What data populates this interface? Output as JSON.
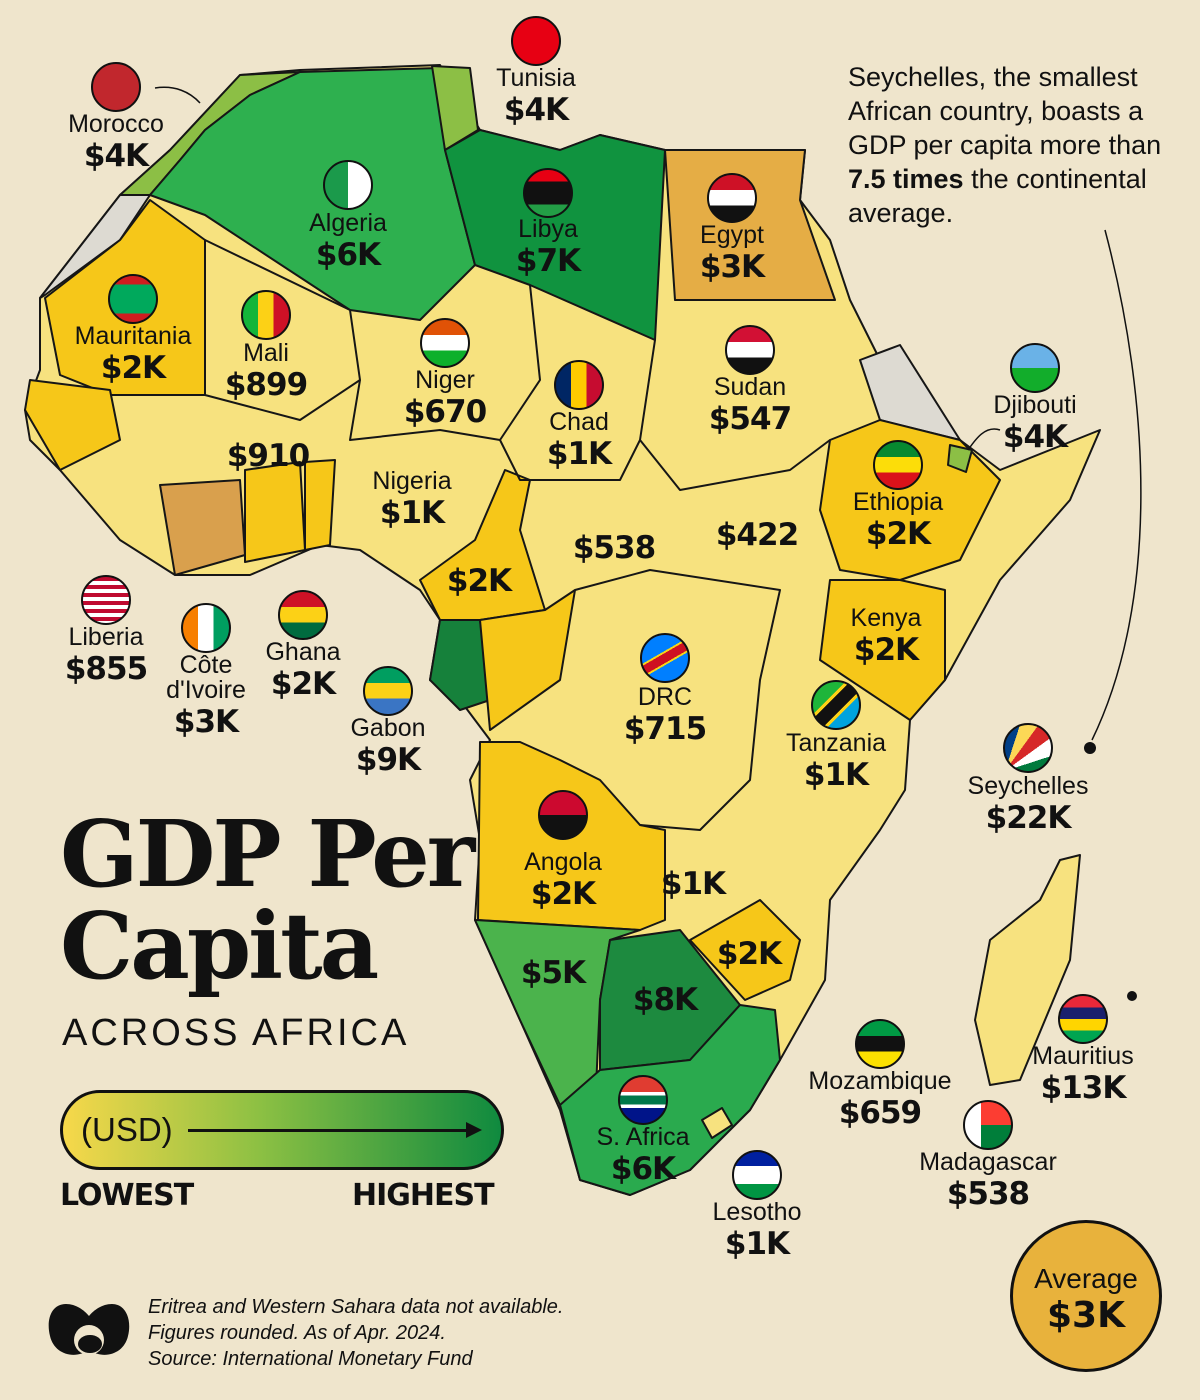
{
  "title": "GDP Per Capita",
  "subtitle": "ACROSS AFRICA",
  "legend": {
    "unit": "(USD)",
    "low": "LOWEST",
    "high": "HIGHEST",
    "colors": [
      "#f7d84a",
      "#8cc043",
      "#0f8a3f"
    ]
  },
  "note": {
    "pre": "Seychelles, the smallest African country, boasts a GDP per capita more than ",
    "emphasis": "7.5 times",
    "post": " the continental average."
  },
  "average": {
    "label": "Average",
    "value": "$3K"
  },
  "footer": [
    "Eritrea and Western Sahara data not available.",
    "Figures rounded. As of Apr. 2024.",
    "Source: International Monetary Fund"
  ],
  "countries": [
    {
      "name": "Morocco",
      "value": "$4K"
    },
    {
      "name": "Tunisia",
      "value": "$4K"
    },
    {
      "name": "Algeria",
      "value": "$6K"
    },
    {
      "name": "Libya",
      "value": "$7K"
    },
    {
      "name": "Egypt",
      "value": "$3K"
    },
    {
      "name": "Mauritania",
      "value": "$2K"
    },
    {
      "name": "Mali",
      "value": "$899"
    },
    {
      "name": "Niger",
      "value": "$670"
    },
    {
      "name": "Chad",
      "value": "$1K"
    },
    {
      "name": "Sudan",
      "value": "$547"
    },
    {
      "name": "Djibouti",
      "value": "$4K"
    },
    {
      "name": "Ethiopia",
      "value": "$2K"
    },
    {
      "name": "Nigeria",
      "value": "$1K"
    },
    {
      "name": "Kenya",
      "value": "$2K"
    },
    {
      "name": "DRC",
      "value": "$715"
    },
    {
      "name": "Tanzania",
      "value": "$1K"
    },
    {
      "name": "Seychelles",
      "value": "$22K"
    },
    {
      "name": "Liberia",
      "value": "$855"
    },
    {
      "name": "Côte d'Ivoire",
      "value": "$3K"
    },
    {
      "name": "Ghana",
      "value": "$2K"
    },
    {
      "name": "Gabon",
      "value": "$9K"
    },
    {
      "name": "Angola",
      "value": "$2K"
    },
    {
      "name": "S. Africa",
      "value": "$6K"
    },
    {
      "name": "Lesotho",
      "value": "$1K"
    },
    {
      "name": "Mozambique",
      "value": "$659"
    },
    {
      "name": "Madagascar",
      "value": "$538"
    },
    {
      "name": "Mauritius",
      "value": "$13K"
    }
  ],
  "unnamed_values": [
    "$910",
    "$538",
    "$422",
    "$2K",
    "$1K",
    "$2K",
    "$5K",
    "$8K"
  ],
  "fill_colors": {
    "lowest": "#f7e27f",
    "low": "#f6c719",
    "mid": "#e5ad45",
    "upper": "#8cbf45",
    "high": "#2eb04f",
    "highest": "#10933f",
    "no_data": "#dddad2"
  }
}
